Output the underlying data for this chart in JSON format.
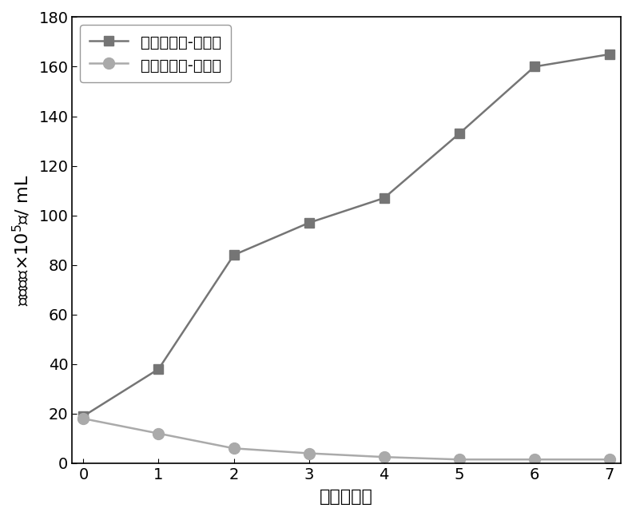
{
  "x": [
    0,
    1,
    2,
    3,
    4,
    5,
    6,
    7
  ],
  "control_y": [
    19,
    38,
    84,
    97,
    107,
    133,
    160,
    165
  ],
  "experiment_y": [
    18,
    12,
    6,
    4,
    2.5,
    1.5,
    1.5,
    1.5
  ],
  "control_label": "普通小球藻-对照组",
  "experiment_label": "普通小球藻-实验组",
  "control_color": "#757575",
  "experiment_color": "#aaaaaa",
  "xlabel": "时间（天）",
  "xlim": [
    0,
    7
  ],
  "ylim": [
    0,
    180
  ],
  "yticks": [
    0,
    20,
    40,
    60,
    80,
    100,
    120,
    140,
    160,
    180
  ],
  "xticks": [
    0,
    1,
    2,
    3,
    4,
    5,
    6,
    7
  ],
  "linewidth": 1.8,
  "markersize_square": 9,
  "markersize_circle": 10,
  "legend_fontsize": 14,
  "axis_label_fontsize": 16,
  "tick_fontsize": 14
}
